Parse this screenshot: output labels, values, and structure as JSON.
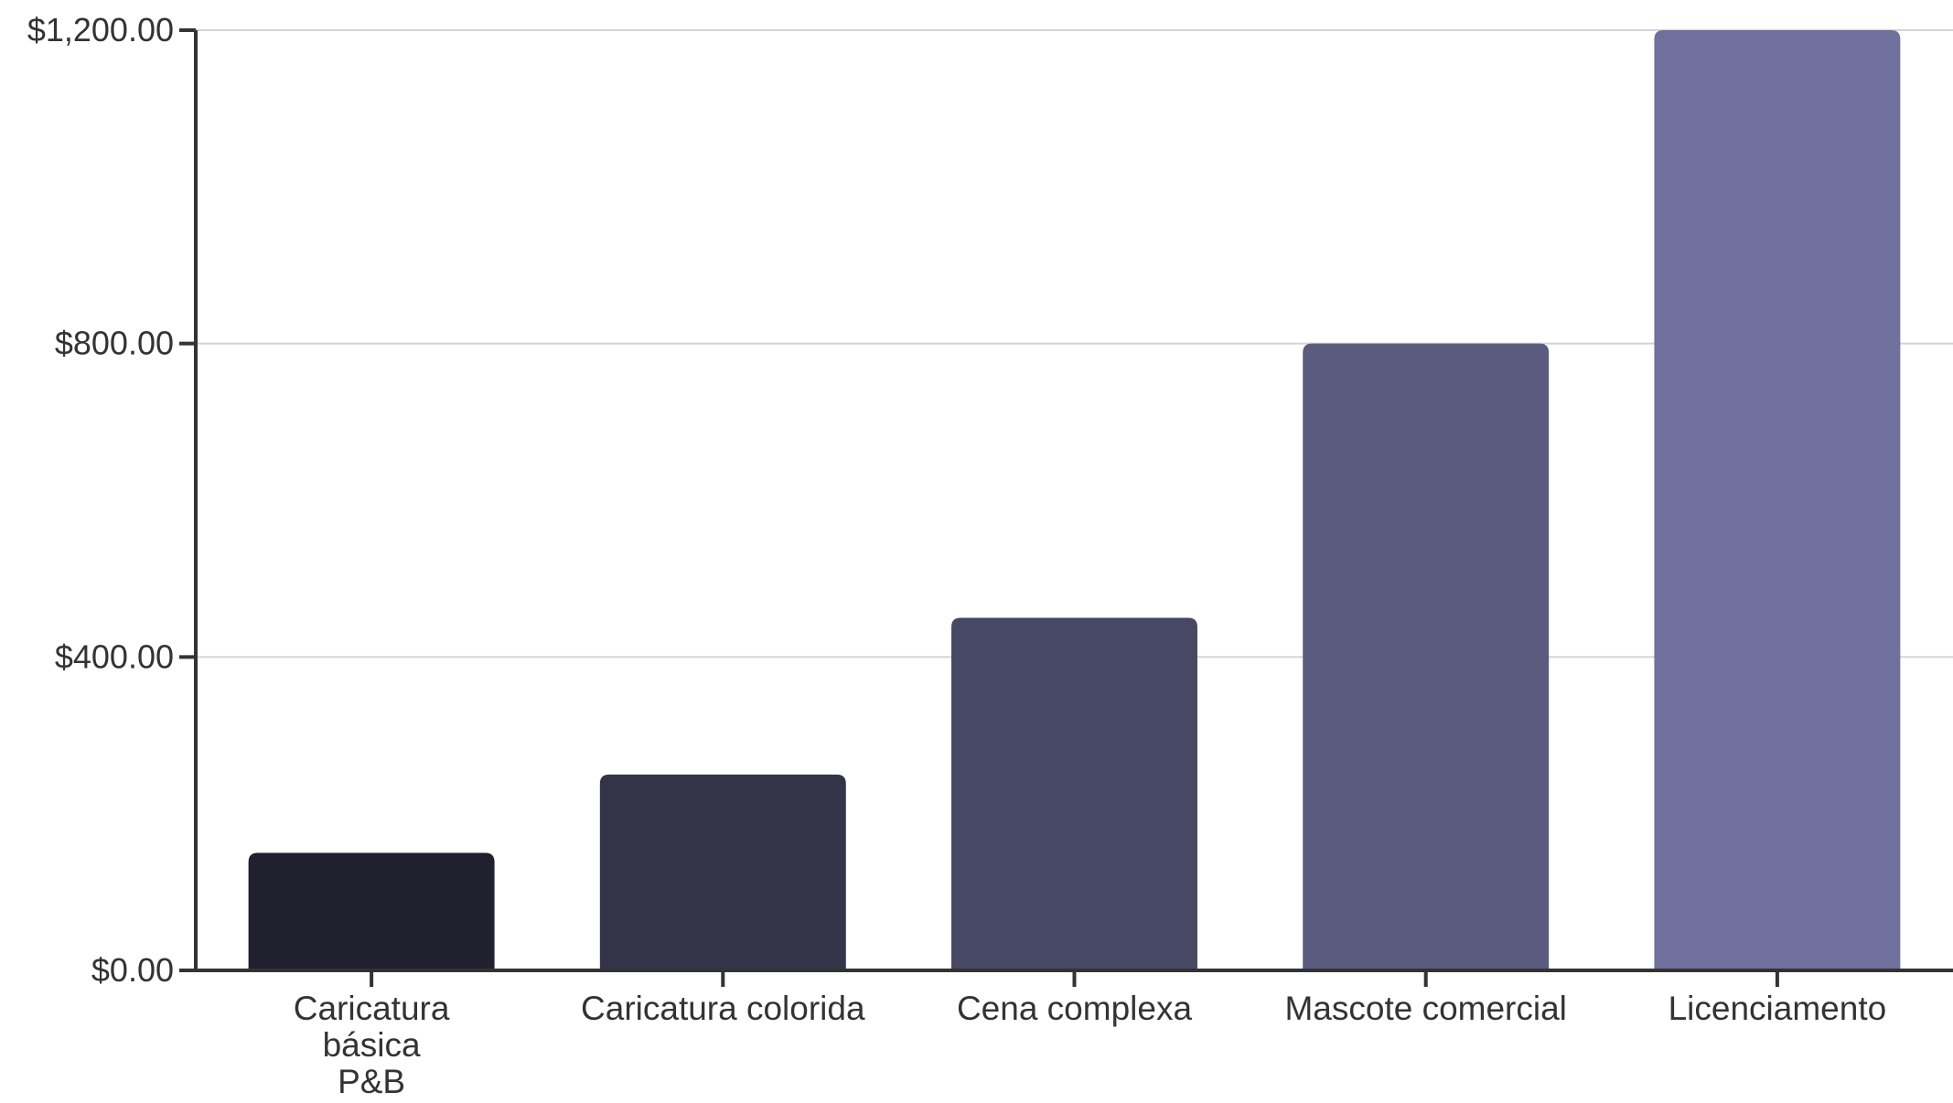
{
  "chart_data": {
    "type": "bar",
    "title": "",
    "xlabel": "",
    "ylabel": "",
    "categories": [
      [
        "Caricatura",
        "básica",
        "P&B"
      ],
      [
        "Caricatura colorida"
      ],
      [
        "Cena complexa"
      ],
      [
        "Mascote comercial"
      ],
      [
        "Licenciamento"
      ]
    ],
    "values": [
      150,
      250,
      450,
      800,
      1200
    ],
    "ylim": [
      0,
      1200
    ],
    "yticks": [
      0,
      400,
      800,
      1200
    ],
    "ytick_labels": [
      "$0.00",
      "$400.00",
      "$800.00",
      "$1,200.00"
    ],
    "grid": true,
    "legend": "none",
    "colors": [
      "#20202e",
      "#343449",
      "#474864",
      "#5b5b80",
      "#6f709c"
    ],
    "gridline_color": "#d4d4d8",
    "axis_color": "#333333"
  }
}
